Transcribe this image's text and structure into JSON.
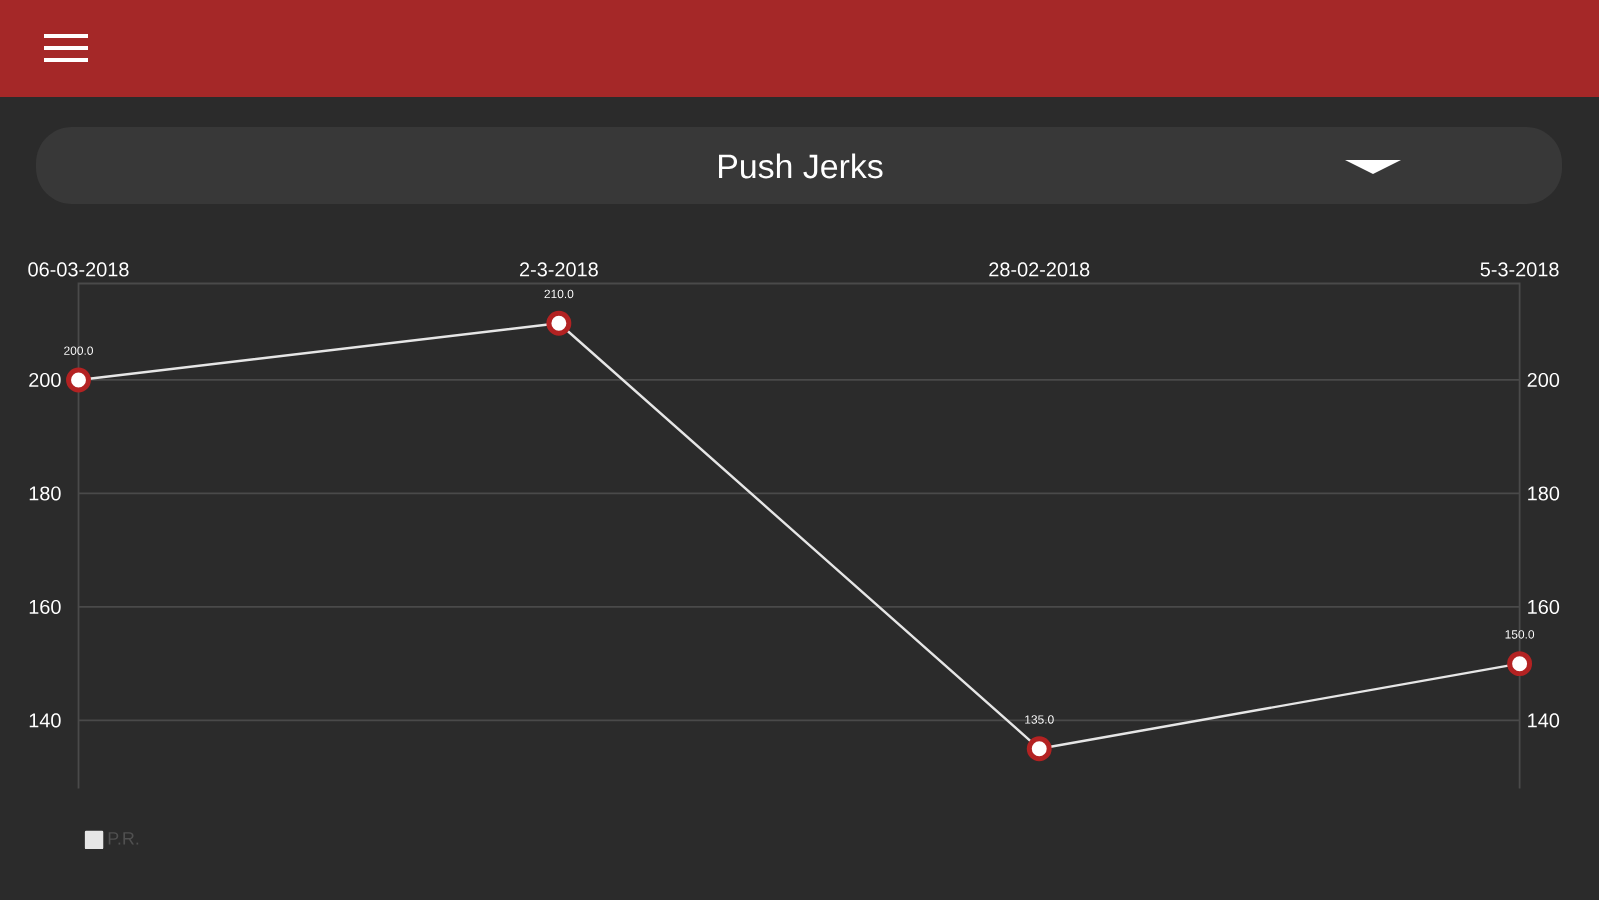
{
  "chart_data": {
    "type": "line",
    "title": "Push Jerks",
    "categories": [
      "06-03-2018",
      "2-3-2018",
      "28-02-2018",
      "5-3-2018"
    ],
    "series": [
      {
        "name": "P.R.",
        "color": "#e6e6e6",
        "values": [
          200,
          210,
          135,
          150
        ]
      }
    ],
    "value_labels": [
      "200.0",
      "210.0",
      "135.0",
      "150.0"
    ],
    "ylim": [
      128,
      217
    ],
    "yticks": [
      140,
      160,
      180,
      200
    ],
    "y2lim": [
      128,
      217
    ],
    "y2ticks": [
      140,
      160,
      180,
      200
    ],
    "grid": "y",
    "legend": "bottom left",
    "marker": "circle",
    "line_style": "solid"
  }
}
